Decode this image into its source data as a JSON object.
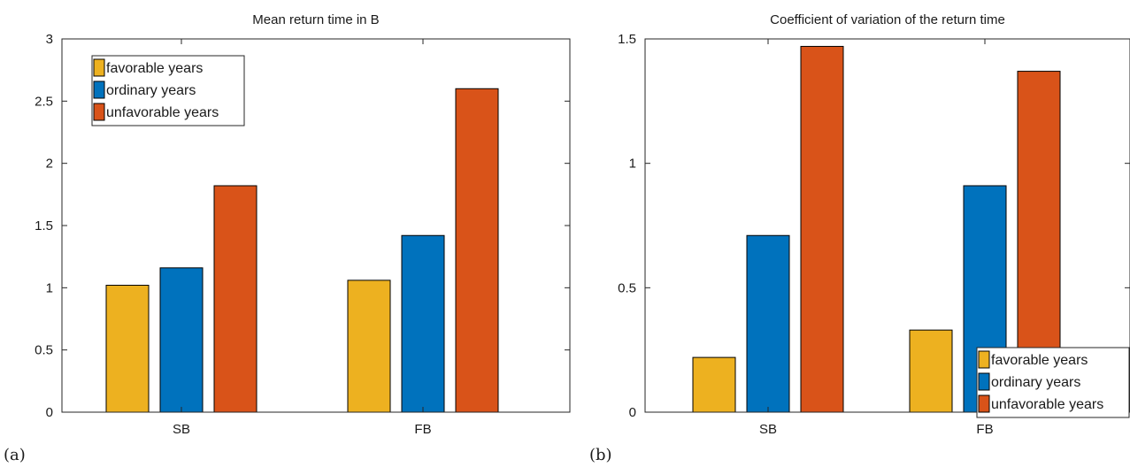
{
  "chart_data": [
    {
      "type": "bar",
      "panel_label": "(a)",
      "title": "Mean return time in B",
      "xlabel": "",
      "ylabel": "",
      "categories": [
        "SB",
        "FB"
      ],
      "ylim": [
        0,
        3
      ],
      "yticks": [
        0,
        0.5,
        1,
        1.5,
        2,
        2.5,
        3
      ],
      "ytick_labels": [
        "0",
        "0.5",
        "1",
        "1.5",
        "2",
        "2.5",
        "3"
      ],
      "legend_position": "top-left",
      "series": [
        {
          "name": "favorable years",
          "color": "#EDB120",
          "values": [
            1.02,
            1.06
          ]
        },
        {
          "name": "ordinary years",
          "color": "#0072BD",
          "values": [
            1.16,
            1.42
          ]
        },
        {
          "name": "unfavorable years",
          "color": "#D95319",
          "values": [
            1.82,
            2.6
          ]
        }
      ]
    },
    {
      "type": "bar",
      "panel_label": "(b)",
      "title": "Coefficient of variation of the return time",
      "xlabel": "",
      "ylabel": "",
      "categories": [
        "SB",
        "FB"
      ],
      "ylim": [
        0,
        1.5
      ],
      "yticks": [
        0,
        0.5,
        1,
        1.5
      ],
      "ytick_labels": [
        "0",
        "0.5",
        "1",
        "1.5"
      ],
      "legend_position": "bottom-right",
      "series": [
        {
          "name": "favorable years",
          "color": "#EDB120",
          "values": [
            0.22,
            0.33
          ]
        },
        {
          "name": "ordinary years",
          "color": "#0072BD",
          "values": [
            0.71,
            0.91
          ]
        },
        {
          "name": "unfavorable years",
          "color": "#D95319",
          "values": [
            1.47,
            1.37
          ]
        }
      ]
    }
  ]
}
